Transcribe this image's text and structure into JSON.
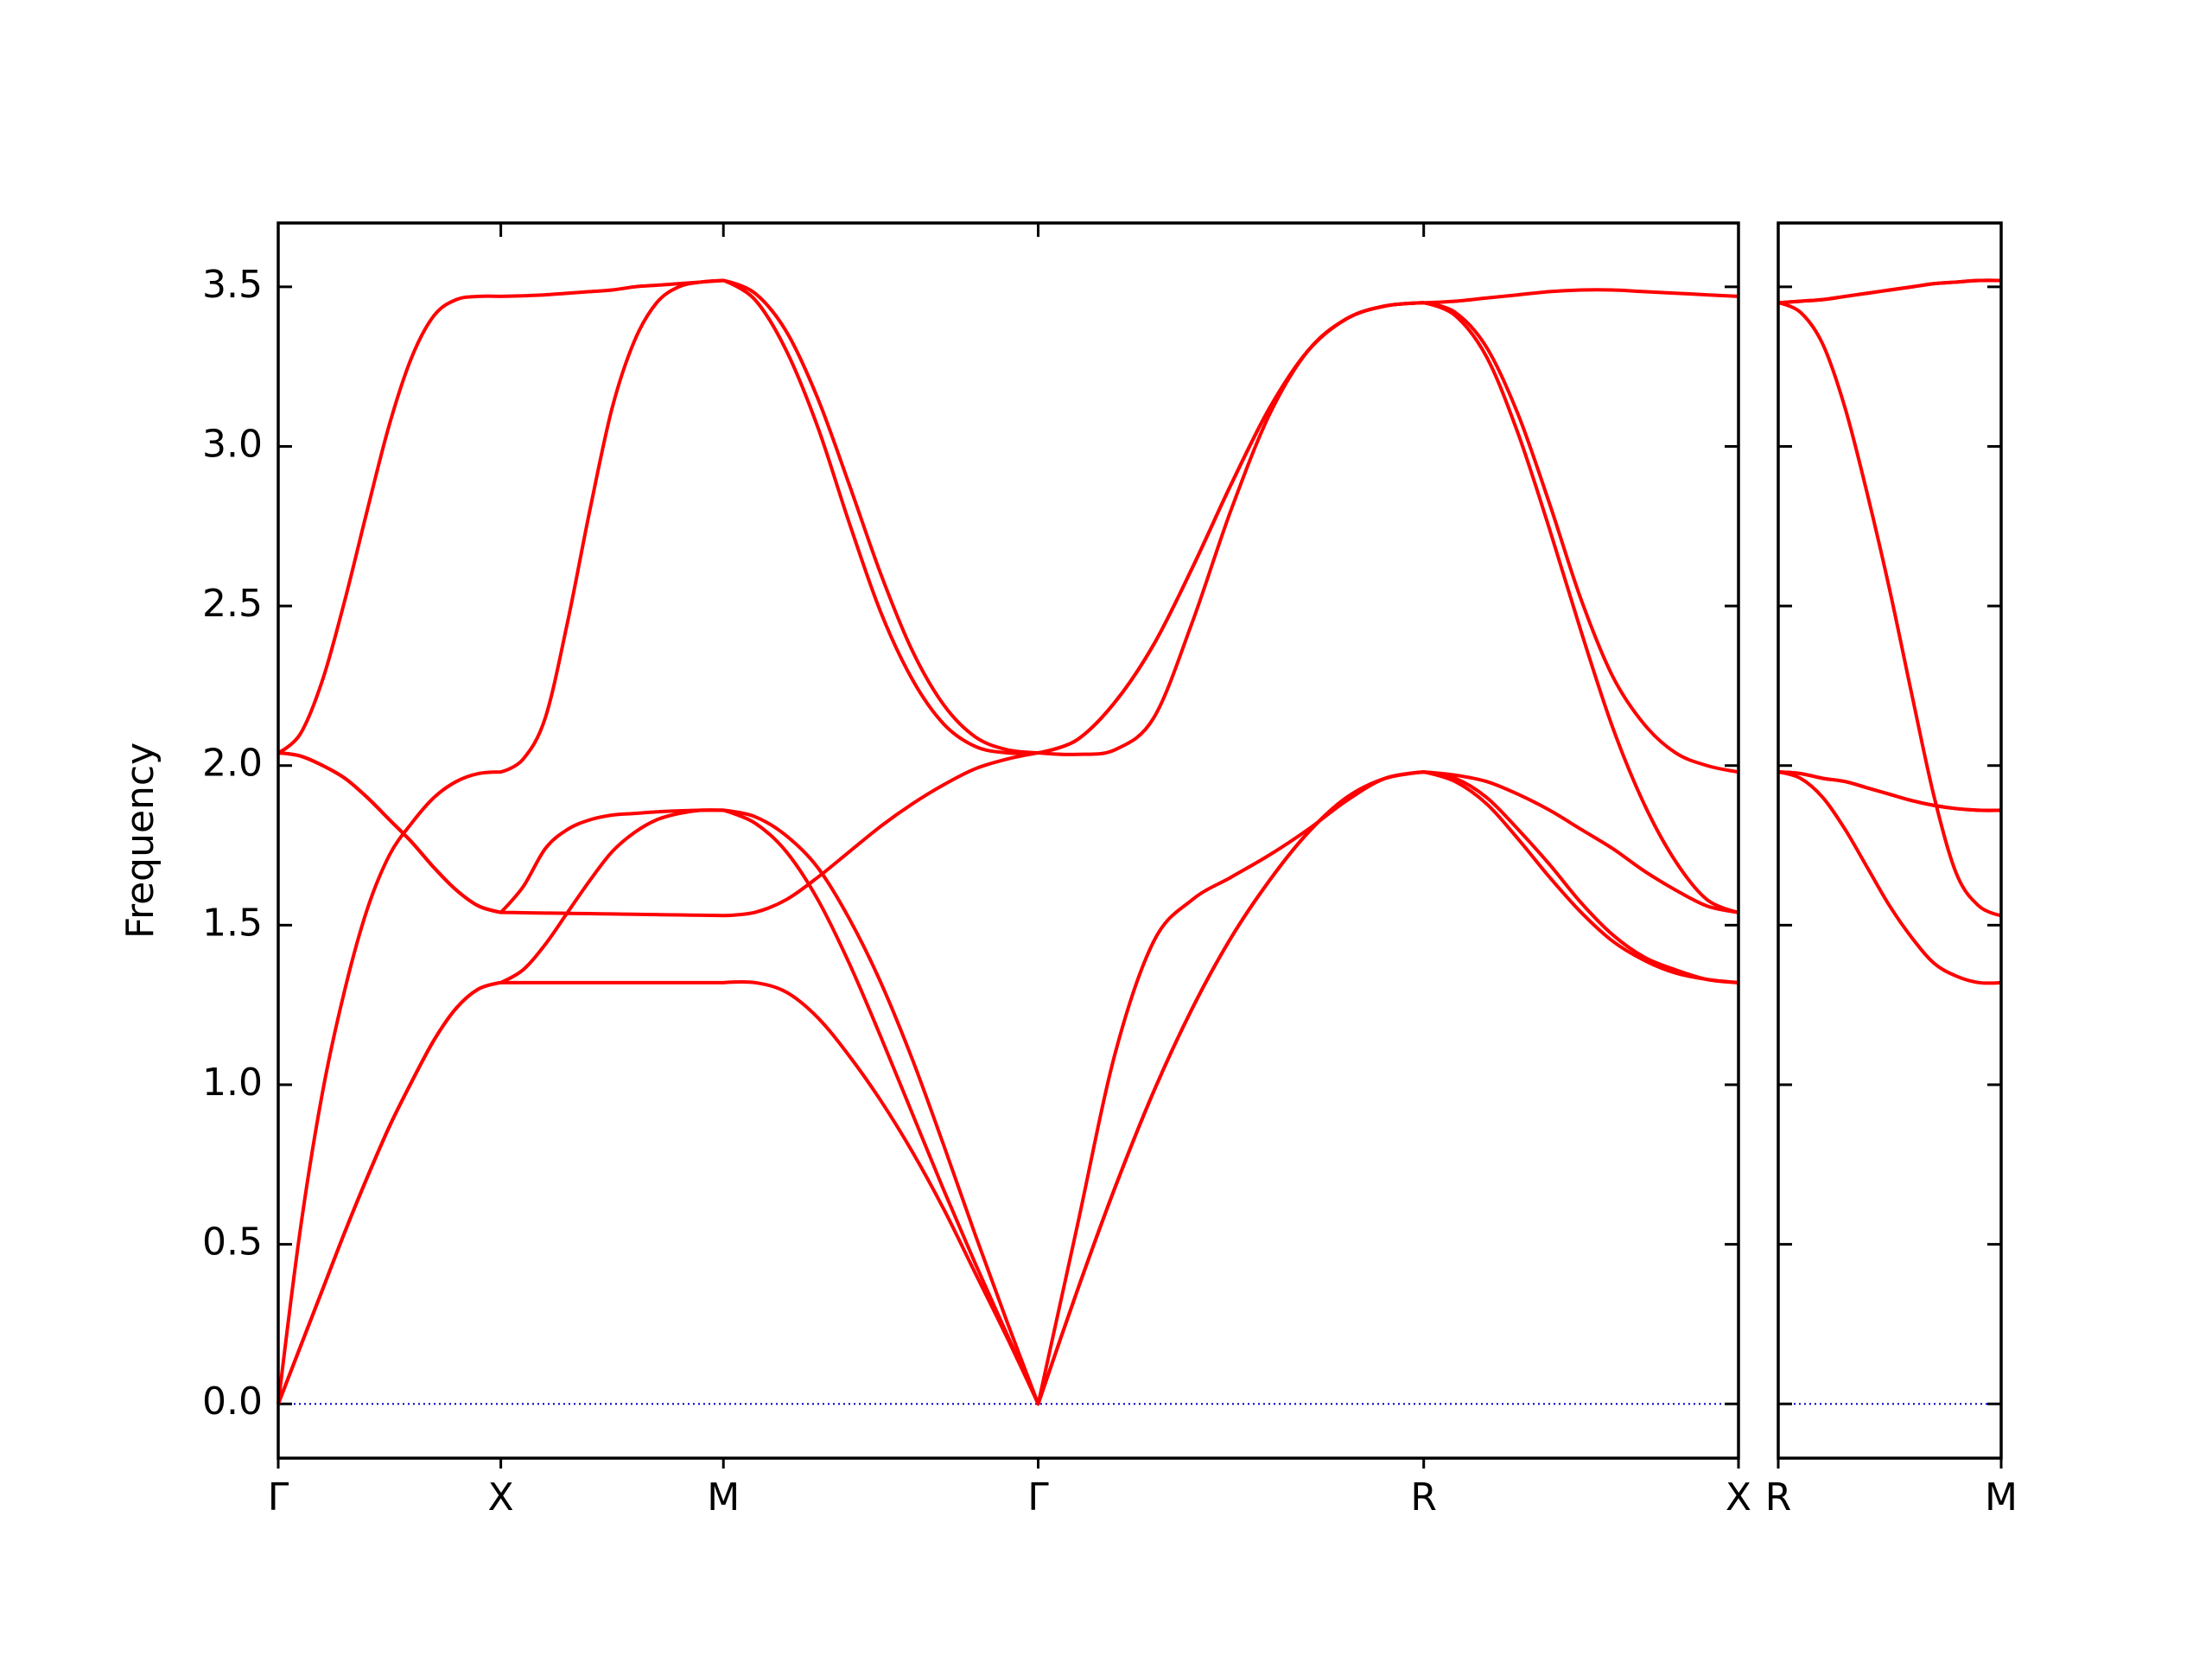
{
  "chart_data": [
    {
      "type": "line",
      "ylabel": "Frequency",
      "x": [
        0,
        0.05,
        0.1,
        0.15,
        0.2,
        0.25,
        0.3,
        0.35,
        0.4,
        0.45,
        0.5,
        0.55,
        0.6,
        0.65,
        0.7,
        0.75,
        0.8,
        0.85,
        0.9,
        0.95,
        1.0,
        1.0707,
        1.1414,
        1.2121,
        1.2828,
        1.3536,
        1.4243,
        1.495,
        1.5657,
        1.6364,
        1.7071,
        1.7937,
        1.8803,
        1.9669,
        2.0535,
        2.1401,
        2.2267,
        2.3133,
        2.3999,
        2.4865,
        2.5731,
        2.6438,
        2.7145,
        2.7852,
        2.8559,
        2.9267,
        2.9974,
        3.0681,
        3.1388,
        3.2095,
        3.2802
      ],
      "series": [
        {
          "color": "#ff0000",
          "values": [
            2.04,
            2.1,
            2.27,
            2.52,
            2.8,
            3.07,
            3.28,
            3.41,
            3.46,
            3.47,
            3.47,
            3.472,
            3.475,
            3.48,
            3.485,
            3.49,
            3.5,
            3.505,
            3.51,
            3.515,
            3.52,
            3.48,
            3.36,
            3.15,
            2.88,
            2.6,
            2.36,
            2.19,
            2.09,
            2.05,
            2.04,
            2.08,
            2.2,
            2.38,
            2.62,
            2.88,
            3.12,
            3.3,
            3.4,
            3.44,
            3.45,
            3.455,
            3.465,
            3.475,
            3.485,
            3.49,
            3.49,
            3.485,
            3.48,
            3.475,
            3.47
          ]
        },
        {
          "color": "#ff0000",
          "values": [
            2.04,
            2.03,
            2.0,
            1.96,
            1.9,
            1.83,
            1.76,
            1.68,
            1.61,
            1.56,
            1.54,
            1.62,
            1.74,
            1.8,
            1.83,
            1.845,
            1.85,
            1.855,
            1.858,
            1.86,
            1.86,
            1.84,
            1.78,
            1.68,
            1.52,
            1.32,
            1.08,
            0.81,
            0.53,
            0.26,
            0,
            0.55,
            1.1,
            1.45,
            1.58,
            1.65,
            1.72,
            1.8,
            1.89,
            1.96,
            1.98,
            1.97,
            1.95,
            1.91,
            1.86,
            1.8,
            1.74,
            1.67,
            1.61,
            1.56,
            1.54
          ]
        },
        {
          "color": "#ff0000",
          "values": [
            2.04,
            2.03,
            2.0,
            1.96,
            1.9,
            1.83,
            1.76,
            1.68,
            1.61,
            1.56,
            1.54,
            1.539,
            1.538,
            1.537,
            1.536,
            1.535,
            1.534,
            1.533,
            1.532,
            1.531,
            1.53,
            1.54,
            1.58,
            1.65,
            1.73,
            1.81,
            1.88,
            1.94,
            1.99,
            2.02,
            2.04,
            2.08,
            2.2,
            2.38,
            2.62,
            2.88,
            3.12,
            3.3,
            3.4,
            3.44,
            3.45,
            3.41,
            3.28,
            3.04,
            2.74,
            2.42,
            2.12,
            1.88,
            1.7,
            1.58,
            1.54
          ]
        },
        {
          "color": "#ff0000",
          "values": [
            0,
            0.55,
            0.98,
            1.3,
            1.55,
            1.72,
            1.82,
            1.9,
            1.95,
            1.975,
            1.98,
            2.02,
            2.15,
            2.45,
            2.8,
            3.12,
            3.33,
            3.45,
            3.5,
            3.515,
            3.52,
            3.46,
            3.3,
            3.06,
            2.76,
            2.48,
            2.27,
            2.13,
            2.06,
            2.04,
            2.04,
            2.035,
            2.05,
            2.15,
            2.45,
            2.8,
            3.1,
            3.3,
            3.4,
            3.44,
            3.45,
            3.42,
            3.31,
            3.1,
            2.82,
            2.52,
            2.28,
            2.13,
            2.04,
            2.0,
            1.98
          ]
        },
        {
          "color": "#ff0000",
          "values": [
            0,
            0.18,
            0.36,
            0.54,
            0.71,
            0.87,
            1.01,
            1.14,
            1.24,
            1.3,
            1.32,
            1.36,
            1.44,
            1.54,
            1.64,
            1.73,
            1.79,
            1.83,
            1.85,
            1.86,
            1.86,
            1.82,
            1.73,
            1.58,
            1.38,
            1.15,
            0.91,
            0.67,
            0.44,
            0.22,
            0,
            0.35,
            0.68,
            0.98,
            1.24,
            1.46,
            1.64,
            1.79,
            1.9,
            1.96,
            1.98,
            1.96,
            1.9,
            1.8,
            1.69,
            1.57,
            1.47,
            1.4,
            1.36,
            1.33,
            1.32
          ]
        },
        {
          "color": "#ff0000",
          "values": [
            0,
            0.18,
            0.36,
            0.54,
            0.71,
            0.87,
            1.01,
            1.14,
            1.24,
            1.3,
            1.32,
            1.32,
            1.32,
            1.32,
            1.32,
            1.32,
            1.32,
            1.32,
            1.32,
            1.32,
            1.32,
            1.32,
            1.29,
            1.21,
            1.09,
            0.95,
            0.79,
            0.61,
            0.41,
            0.21,
            0,
            0.35,
            0.68,
            0.98,
            1.24,
            1.46,
            1.64,
            1.79,
            1.9,
            1.96,
            1.98,
            1.95,
            1.88,
            1.77,
            1.65,
            1.54,
            1.45,
            1.39,
            1.35,
            1.33,
            1.32
          ]
        }
      ],
      "xlim": [
        0,
        3.2802
      ],
      "xticks": [
        {
          "value": 0,
          "label": "Γ"
        },
        {
          "value": 0.5,
          "label": "X"
        },
        {
          "value": 1.0,
          "label": "M"
        },
        {
          "value": 1.7071,
          "label": "Γ"
        },
        {
          "value": 2.5731,
          "label": "R"
        },
        {
          "value": 3.2802,
          "label": "X"
        }
      ],
      "ylim": [
        -0.17,
        3.7
      ],
      "yticks": [
        {
          "value": 0,
          "label": "0.0"
        },
        0.5,
        {
          "value": 1.0,
          "label": "1.0"
        },
        1.5,
        {
          "value": 2.0,
          "label": "2.0"
        },
        2.5,
        {
          "value": 3.0,
          "label": "3.0"
        },
        3.5
      ],
      "show_ytick_labels": true,
      "hline": {
        "value": 0,
        "color": "#0000cc"
      }
    },
    {
      "type": "line",
      "x": [
        0,
        0.0707,
        0.1414,
        0.2121,
        0.2828,
        0.3536,
        0.4243,
        0.495,
        0.5657,
        0.6364,
        0.7071
      ],
      "series": [
        {
          "color": "#ff0000",
          "values": [
            3.45,
            3.455,
            3.46,
            3.47,
            3.48,
            3.49,
            3.5,
            3.51,
            3.515,
            3.52,
            3.52
          ]
        },
        {
          "color": "#ff0000",
          "values": [
            3.45,
            3.455,
            3.46,
            3.47,
            3.48,
            3.49,
            3.5,
            3.51,
            3.515,
            3.52,
            3.52
          ]
        },
        {
          "color": "#ff0000",
          "values": [
            3.45,
            3.42,
            3.32,
            3.12,
            2.85,
            2.55,
            2.22,
            1.9,
            1.66,
            1.56,
            1.53
          ]
        },
        {
          "color": "#ff0000",
          "values": [
            1.98,
            1.975,
            1.96,
            1.95,
            1.93,
            1.91,
            1.89,
            1.875,
            1.865,
            1.86,
            1.86
          ]
        },
        {
          "color": "#ff0000",
          "values": [
            1.98,
            1.975,
            1.96,
            1.95,
            1.93,
            1.91,
            1.89,
            1.875,
            1.865,
            1.86,
            1.86
          ]
        },
        {
          "color": "#ff0000",
          "values": [
            1.98,
            1.96,
            1.9,
            1.8,
            1.68,
            1.56,
            1.46,
            1.38,
            1.34,
            1.32,
            1.32
          ]
        }
      ],
      "xlim": [
        0,
        0.7071
      ],
      "xticks": [
        {
          "value": 0,
          "label": "R"
        },
        {
          "value": 0.7071,
          "label": "M"
        }
      ],
      "ylim": [
        -0.17,
        3.7
      ],
      "yticks": [
        0,
        0.5,
        1.0,
        1.5,
        2.0,
        2.5,
        3.0,
        3.5
      ],
      "show_ytick_labels": false,
      "hline": {
        "value": 0,
        "color": "#0000cc"
      }
    }
  ]
}
